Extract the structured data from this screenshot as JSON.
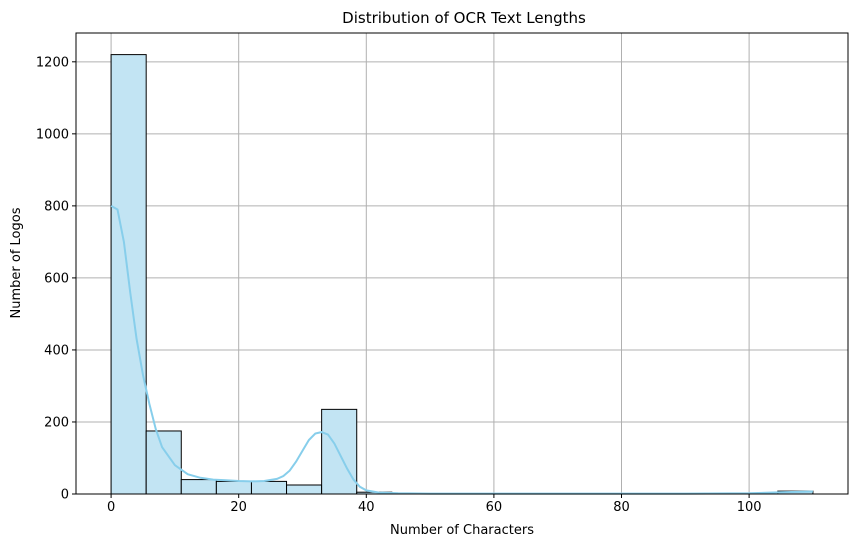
{
  "chart_data": {
    "type": "histogram",
    "title": "Distribution of OCR Text Lengths",
    "xlabel": "Number of Characters",
    "ylabel": "Number of Logos",
    "xlim": [
      -5.5,
      115.5
    ],
    "ylim": [
      0,
      1280
    ],
    "xticks": [
      0,
      20,
      40,
      60,
      80,
      100
    ],
    "yticks": [
      0,
      200,
      400,
      600,
      800,
      1000,
      1200
    ],
    "grid": true,
    "bin_edges": [
      0,
      5.5,
      11,
      16.5,
      22,
      27.5,
      33,
      38.5,
      44,
      49.5,
      55,
      60.5,
      66,
      71.5,
      77,
      82.5,
      88,
      93.5,
      99,
      104.5,
      110
    ],
    "counts": [
      1220,
      175,
      40,
      35,
      35,
      25,
      235,
      5,
      0,
      0,
      0,
      0,
      0,
      0,
      0,
      0,
      0,
      0,
      0,
      8
    ],
    "kde": {
      "x": [
        0,
        1,
        2,
        3,
        4,
        5,
        6,
        7,
        8,
        10,
        12,
        14,
        16,
        18,
        20,
        22,
        24,
        26,
        27,
        28,
        29,
        30,
        31,
        32,
        33,
        34,
        35,
        36,
        37,
        38,
        39,
        40,
        42,
        45,
        50,
        60,
        70,
        80,
        90,
        100,
        105,
        110
      ],
      "y": [
        800,
        790,
        700,
        560,
        430,
        330,
        250,
        180,
        130,
        80,
        55,
        45,
        40,
        38,
        36,
        35,
        36,
        42,
        50,
        65,
        90,
        120,
        150,
        168,
        172,
        165,
        140,
        105,
        70,
        40,
        20,
        10,
        4,
        2,
        1,
        1,
        1,
        1,
        1,
        2,
        5,
        7
      ]
    },
    "bar_fill": "#c2e4f3",
    "bar_edge": "#000000",
    "kde_color": "#87ceeb",
    "grid_color": "#b0b0b0"
  }
}
